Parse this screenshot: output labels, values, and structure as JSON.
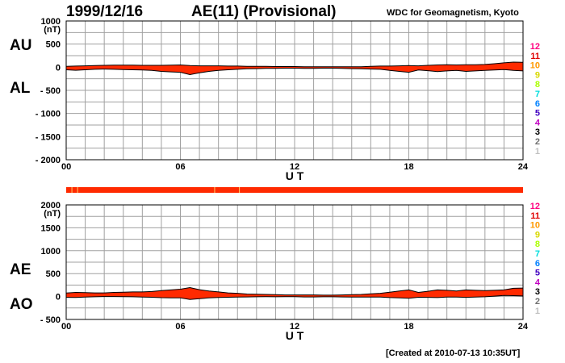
{
  "header": {
    "date": "1999/12/16",
    "title": "AE(11) (Provisional)",
    "source": "WDC for Geomagnetism, Kyoto"
  },
  "footer": {
    "created": "[Created at 2010-07-13 10:35UT]"
  },
  "chart_data": [
    {
      "type": "area",
      "panel": "top",
      "unit": "(nT)",
      "xlabel": "U T",
      "ylim": [
        -2000,
        1000
      ],
      "yticks": [
        "1000",
        "500",
        "0",
        "- 500",
        "- 1000",
        "- 1500",
        "- 2000"
      ],
      "xticks": [
        "00",
        "06",
        "12",
        "18",
        "24"
      ],
      "labels": [
        "AU",
        "AL"
      ],
      "grid": true,
      "x": [
        0,
        0.5,
        1,
        1.5,
        2,
        2.5,
        3,
        3.5,
        4,
        4.5,
        5,
        5.5,
        6,
        6.5,
        7,
        7.5,
        8,
        8.5,
        9,
        9.5,
        10,
        10.5,
        11,
        11.5,
        12,
        12.5,
        13,
        13.5,
        14,
        14.5,
        15,
        15.5,
        16,
        16.5,
        17,
        17.5,
        18,
        18.5,
        19,
        19.5,
        20,
        20.5,
        21,
        21.5,
        22,
        22.5,
        23,
        23.5,
        24
      ],
      "series": [
        {
          "key": "AU",
          "values": [
            20,
            25,
            30,
            35,
            40,
            45,
            45,
            45,
            40,
            40,
            40,
            45,
            50,
            35,
            30,
            30,
            30,
            25,
            25,
            20,
            20,
            20,
            15,
            15,
            15,
            10,
            10,
            10,
            10,
            10,
            10,
            10,
            20,
            25,
            25,
            30,
            35,
            30,
            40,
            50,
            55,
            50,
            55,
            55,
            60,
            75,
            95,
            110,
            105
          ]
        },
        {
          "key": "AL",
          "values": [
            -55,
            -65,
            -55,
            -45,
            -40,
            -45,
            -50,
            -55,
            -60,
            -70,
            -90,
            -100,
            -110,
            -160,
            -120,
            -90,
            -70,
            -55,
            -45,
            -35,
            -30,
            -25,
            -25,
            -20,
            -20,
            -25,
            -25,
            -20,
            -20,
            -25,
            -30,
            -35,
            -40,
            -45,
            -70,
            -90,
            -110,
            -60,
            -75,
            -95,
            -80,
            -70,
            -90,
            -80,
            -70,
            -60,
            -50,
            -70,
            -80
          ]
        }
      ]
    },
    {
      "type": "area",
      "panel": "bottom",
      "unit": "(nT)",
      "xlabel": "U T",
      "ylim": [
        -500,
        2000
      ],
      "yticks": [
        "2000",
        "1500",
        "1000",
        "500",
        "0",
        "- 500"
      ],
      "xticks": [
        "00",
        "06",
        "12",
        "18",
        "24"
      ],
      "labels": [
        "AE",
        "AO"
      ],
      "grid": true,
      "x": [
        0,
        0.5,
        1,
        1.5,
        2,
        2.5,
        3,
        3.5,
        4,
        4.5,
        5,
        5.5,
        6,
        6.5,
        7,
        7.5,
        8,
        8.5,
        9,
        9.5,
        10,
        10.5,
        11,
        11.5,
        12,
        12.5,
        13,
        13.5,
        14,
        14.5,
        15,
        15.5,
        16,
        16.5,
        17,
        17.5,
        18,
        18.5,
        19,
        19.5,
        20,
        20.5,
        21,
        21.5,
        22,
        22.5,
        23,
        23.5,
        24
      ],
      "series": [
        {
          "key": "AE",
          "values": [
            75,
            90,
            85,
            80,
            80,
            90,
            95,
            100,
            100,
            110,
            130,
            145,
            160,
            195,
            150,
            120,
            100,
            80,
            70,
            55,
            50,
            45,
            40,
            35,
            35,
            35,
            35,
            30,
            30,
            35,
            40,
            45,
            60,
            70,
            95,
            120,
            145,
            90,
            115,
            145,
            135,
            120,
            145,
            135,
            130,
            135,
            145,
            180,
            185
          ]
        },
        {
          "key": "AO",
          "values": [
            -18,
            -20,
            -13,
            -5,
            0,
            0,
            -3,
            -5,
            -10,
            -15,
            -25,
            -28,
            -30,
            -63,
            -45,
            -30,
            -20,
            -15,
            -10,
            -8,
            -5,
            -3,
            -5,
            -3,
            -3,
            -8,
            -8,
            -5,
            -5,
            -8,
            -10,
            -13,
            -10,
            -10,
            -23,
            -30,
            -38,
            -15,
            -18,
            -23,
            -13,
            -10,
            -18,
            -13,
            -5,
            8,
            23,
            20,
            13
          ]
        }
      ]
    }
  ],
  "status_strip": {
    "fill": "#ff2a00",
    "marks": [
      0.3,
      0.6,
      7.8,
      9.1
    ]
  },
  "station_counts": [
    "12",
    "11",
    "10",
    "9",
    "8",
    "7",
    "6",
    "5",
    "4",
    "3",
    "2",
    "1"
  ],
  "colors": {
    "fill": "#ff2a00",
    "grid": "#a0a0a0",
    "station_counts": [
      "#ff0080",
      "#e00000",
      "#ff9900",
      "#d8d800",
      "#aaff00",
      "#00dddd",
      "#0080ff",
      "#4000c0",
      "#c000c0",
      "#000000",
      "#707070",
      "#c0c0c0"
    ]
  }
}
